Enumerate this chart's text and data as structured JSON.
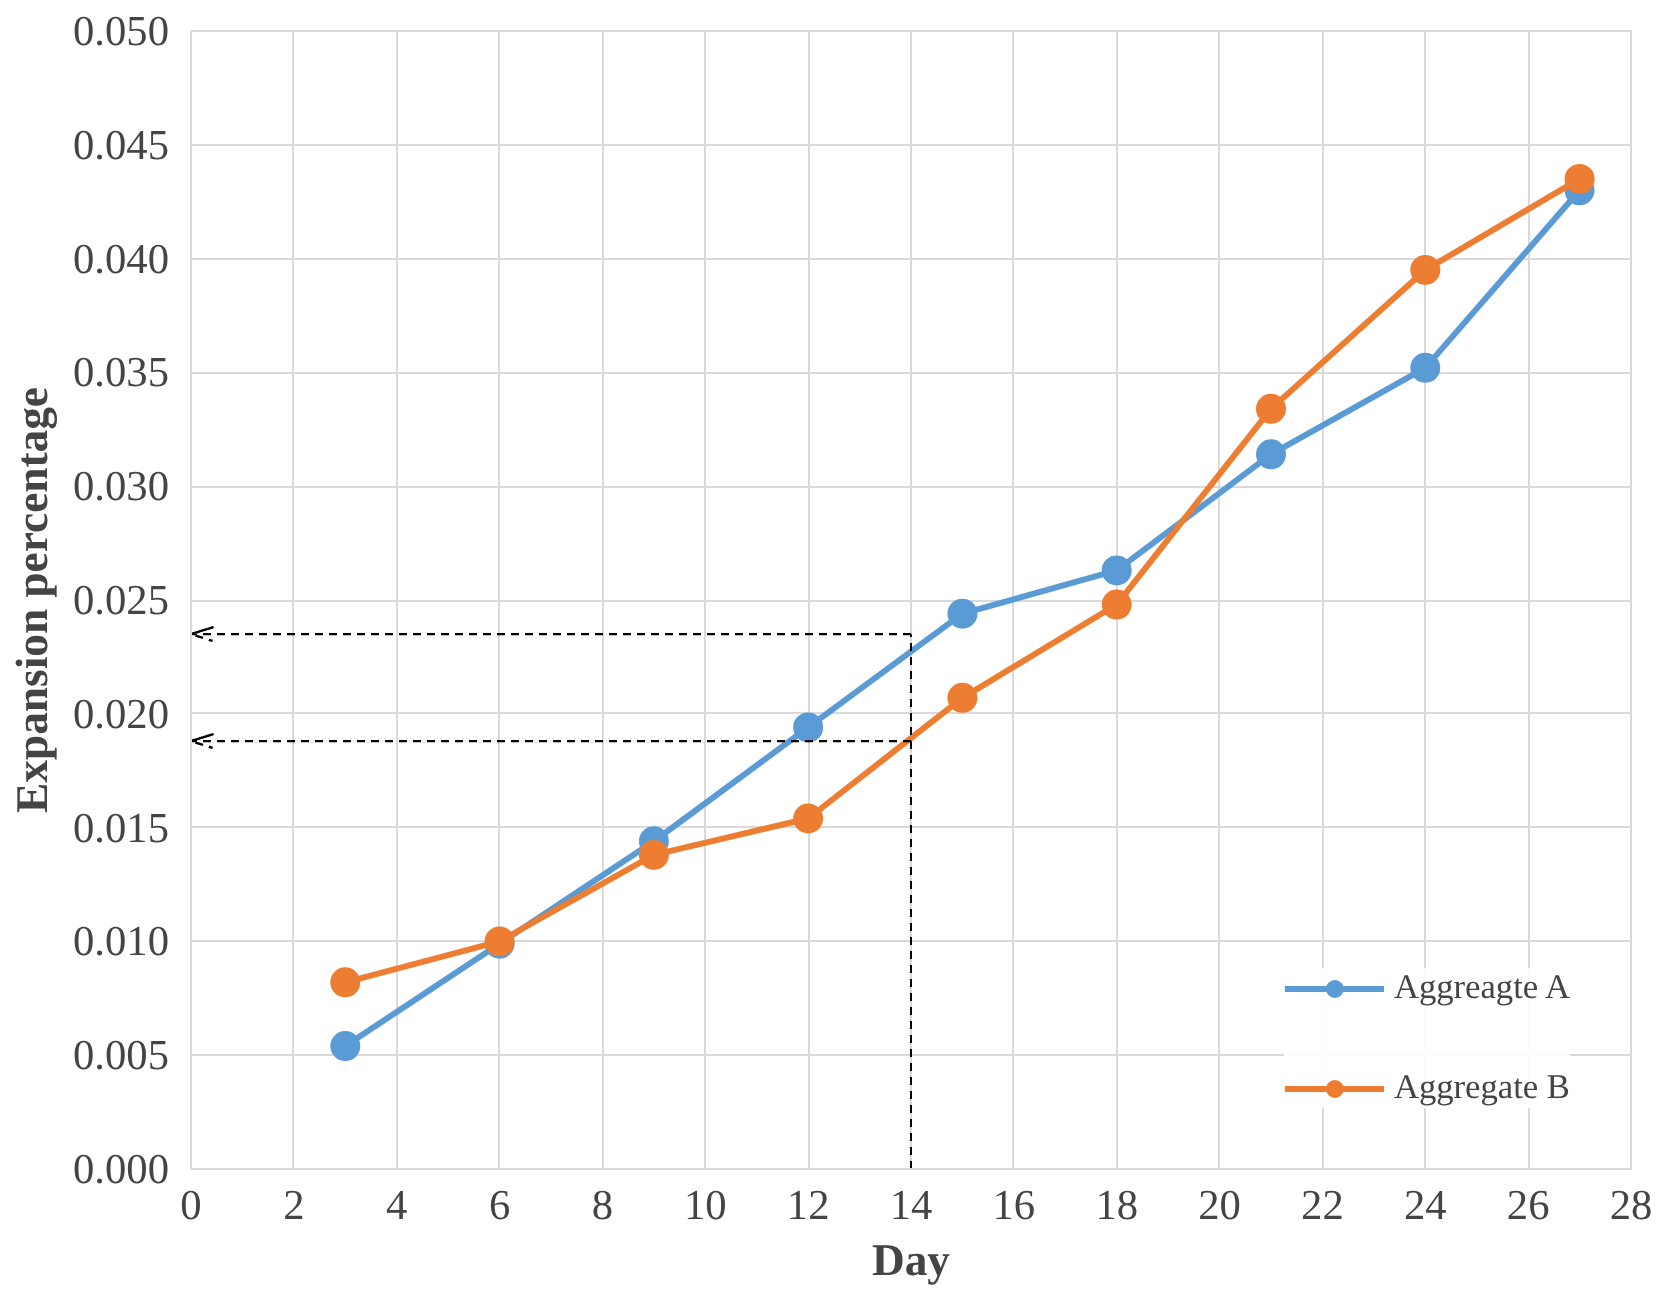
{
  "chart_data": {
    "type": "line",
    "xlabel": "Day",
    "ylabel": "Expansion percentage",
    "x": [
      3,
      6,
      9,
      12,
      15,
      18,
      21,
      24,
      27
    ],
    "series": [
      {
        "name": "Aggreagte A",
        "color": "#5b9bd5",
        "values": [
          0.0054,
          0.0099,
          0.0144,
          0.0194,
          0.0244,
          0.0263,
          0.0314,
          0.0352,
          0.043
        ]
      },
      {
        "name": "Aggregate B",
        "color": "#ed7d31",
        "values": [
          0.0082,
          0.01,
          0.0138,
          0.0154,
          0.0207,
          0.0248,
          0.0334,
          0.0395,
          0.0435
        ]
      }
    ],
    "ref_lines": [
      {
        "axis": "x",
        "value": 14,
        "color": "#000000",
        "line_style": "dashed"
      },
      {
        "axis": "y",
        "value": 0.0235,
        "color": "#000000",
        "line_style": "dashed"
      },
      {
        "axis": "y",
        "value": 0.0188,
        "color": "#000000",
        "line_style": "dashed"
      }
    ],
    "xlim": [
      0,
      28
    ],
    "xticks": [
      0,
      2,
      4,
      6,
      8,
      10,
      12,
      14,
      16,
      18,
      20,
      22,
      24,
      26,
      28
    ],
    "ylim": [
      0,
      0.05
    ],
    "yticks": [
      {
        "value": 0,
        "label": "0.000"
      },
      {
        "value": 0.005,
        "label": "0.005"
      },
      {
        "value": 0.01,
        "label": "0.010"
      },
      {
        "value": 0.015,
        "label": "0.015"
      },
      {
        "value": 0.02,
        "label": "0.020"
      },
      {
        "value": 0.025,
        "label": "0.025"
      },
      {
        "value": 0.03,
        "label": "0.030"
      },
      {
        "value": 0.035,
        "label": "0.035"
      },
      {
        "value": 0.04,
        "label": "0.040"
      },
      {
        "value": 0.045,
        "label": "0.045"
      },
      {
        "value": 0.05,
        "label": "0.050"
      }
    ],
    "grid": true,
    "legend": "bottom right",
    "marker": "circle",
    "line_style": "solid"
  }
}
